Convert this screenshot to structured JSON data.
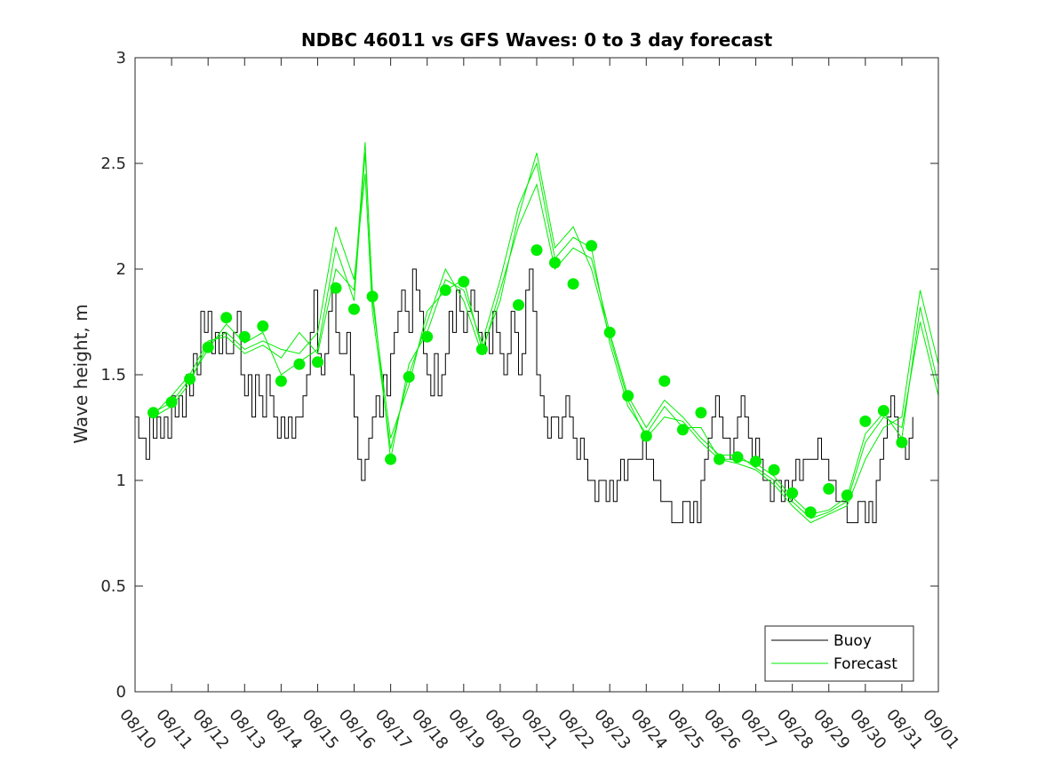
{
  "chart_data": {
    "type": "line",
    "title": "NDBC 46011 vs GFS Waves: 0 to 3 day forecast",
    "xlabel": "",
    "ylabel": "Wave height, m",
    "ylim": [
      0,
      3
    ],
    "yticks": [
      0,
      0.5,
      1,
      1.5,
      2,
      2.5,
      3
    ],
    "ytick_labels": [
      "0",
      "0.5",
      "1",
      "1.5",
      "2",
      "2.5",
      "3"
    ],
    "xlim_days": [
      0,
      22
    ],
    "xtick_labels": [
      "08/10",
      "08/11",
      "08/12",
      "08/13",
      "08/14",
      "08/15",
      "08/16",
      "08/17",
      "08/18",
      "08/19",
      "08/20",
      "08/21",
      "08/22",
      "08/23",
      "08/24",
      "08/25",
      "08/26",
      "08/27",
      "08/28",
      "08/29",
      "08/30",
      "08/31",
      "09/01"
    ],
    "legend": {
      "placement": "bottom-right",
      "entries": [
        "Buoy",
        "Forecast"
      ]
    },
    "colors": {
      "buoy": "#000000",
      "forecast": "#00ee00",
      "marker": "#00ee00",
      "axis": "#262626"
    },
    "series": [
      {
        "name": "Buoy",
        "description_points": "approximate day offsets from 08/10 and wave height (m)",
        "x": [
          0.0,
          0.1,
          0.2,
          0.3,
          0.4,
          0.5,
          0.6,
          0.7,
          0.8,
          0.9,
          1.0,
          1.1,
          1.2,
          1.3,
          1.4,
          1.5,
          1.6,
          1.7,
          1.8,
          1.9,
          2.0,
          2.1,
          2.2,
          2.3,
          2.4,
          2.5,
          2.6,
          2.7,
          2.8,
          2.9,
          3.0,
          3.1,
          3.2,
          3.3,
          3.4,
          3.5,
          3.6,
          3.7,
          3.8,
          3.9,
          4.0,
          4.1,
          4.2,
          4.3,
          4.4,
          4.5,
          4.6,
          4.7,
          4.8,
          4.9,
          5.0,
          5.1,
          5.2,
          5.3,
          5.4,
          5.5,
          5.6,
          5.7,
          5.8,
          5.9,
          6.0,
          6.1,
          6.2,
          6.3,
          6.4,
          6.5,
          6.6,
          6.7,
          6.8,
          6.9,
          7.0,
          7.1,
          7.2,
          7.3,
          7.4,
          7.5,
          7.6,
          7.7,
          7.8,
          7.9,
          8.0,
          8.1,
          8.2,
          8.3,
          8.4,
          8.5,
          8.6,
          8.7,
          8.8,
          8.9,
          9.0,
          9.1,
          9.2,
          9.3,
          9.4,
          9.5,
          9.6,
          9.7,
          9.8,
          9.9,
          10.0,
          10.1,
          10.2,
          10.3,
          10.4,
          10.5,
          10.6,
          10.7,
          10.8,
          10.9,
          11.0,
          11.1,
          11.2,
          11.3,
          11.4,
          11.5,
          11.6,
          11.7,
          11.8,
          11.9,
          12.0,
          12.1,
          12.2,
          12.3,
          12.4,
          12.5,
          12.6,
          12.7,
          12.8,
          12.9,
          13.0,
          13.1,
          13.2,
          13.3,
          13.4,
          13.5,
          13.6,
          13.7,
          13.8,
          13.9,
          14.0,
          14.1,
          14.2,
          14.3,
          14.4,
          14.5,
          14.6,
          14.7,
          14.8,
          14.9,
          15.0,
          15.1,
          15.2,
          15.3,
          15.4,
          15.5,
          15.6,
          15.7,
          15.8,
          15.9,
          16.0,
          16.1,
          16.2,
          16.3,
          16.4,
          16.5,
          16.6,
          16.7,
          16.8,
          16.9,
          17.0,
          17.1,
          17.2,
          17.3,
          17.4,
          17.5,
          17.6,
          17.7,
          17.8,
          17.9,
          18.0,
          18.1,
          18.2,
          18.3,
          18.4,
          18.5,
          18.6,
          18.7,
          18.8,
          18.9,
          19.0,
          19.1,
          19.2,
          19.3,
          19.4,
          19.5,
          19.6,
          19.7,
          19.8,
          19.9,
          20.0,
          20.1,
          20.2,
          20.3,
          20.4,
          20.5,
          20.6,
          20.7,
          20.8,
          20.9,
          21.0,
          21.1,
          21.2,
          21.3
        ],
        "values": [
          1.3,
          1.2,
          1.2,
          1.1,
          1.3,
          1.2,
          1.3,
          1.2,
          1.3,
          1.2,
          1.4,
          1.3,
          1.4,
          1.3,
          1.5,
          1.4,
          1.6,
          1.5,
          1.8,
          1.7,
          1.8,
          1.6,
          1.7,
          1.6,
          1.7,
          1.6,
          1.6,
          1.7,
          1.8,
          1.5,
          1.4,
          1.5,
          1.3,
          1.5,
          1.4,
          1.3,
          1.5,
          1.4,
          1.3,
          1.2,
          1.3,
          1.2,
          1.3,
          1.2,
          1.3,
          1.3,
          1.4,
          1.5,
          1.7,
          1.9,
          1.6,
          1.5,
          1.6,
          1.8,
          1.9,
          1.7,
          1.6,
          1.6,
          1.7,
          1.5,
          1.3,
          1.1,
          1.0,
          1.1,
          1.2,
          1.3,
          1.4,
          1.3,
          1.5,
          1.4,
          1.6,
          1.7,
          1.8,
          1.9,
          1.8,
          1.7,
          2.0,
          1.9,
          1.8,
          1.6,
          1.5,
          1.4,
          1.6,
          1.4,
          1.5,
          1.6,
          1.8,
          1.7,
          1.9,
          1.8,
          1.7,
          1.8,
          1.9,
          1.8,
          1.7,
          1.6,
          1.7,
          1.6,
          1.8,
          1.7,
          1.6,
          1.5,
          1.6,
          1.8,
          1.7,
          1.5,
          1.6,
          1.9,
          2.0,
          1.8,
          1.5,
          1.4,
          1.3,
          1.2,
          1.3,
          1.3,
          1.2,
          1.3,
          1.4,
          1.3,
          1.2,
          1.1,
          1.2,
          1.1,
          1.0,
          1.0,
          0.9,
          1.0,
          1.0,
          0.9,
          1.0,
          0.9,
          1.0,
          1.1,
          1.0,
          1.1,
          1.1,
          1.1,
          1.1,
          1.2,
          1.1,
          1.1,
          1.0,
          1.0,
          0.9,
          0.9,
          0.9,
          0.8,
          0.8,
          0.8,
          0.9,
          0.9,
          0.8,
          0.9,
          0.8,
          1.0,
          1.1,
          1.2,
          1.3,
          1.4,
          1.3,
          1.2,
          1.2,
          1.1,
          1.2,
          1.3,
          1.4,
          1.3,
          1.2,
          1.1,
          1.2,
          1.1,
          1.0,
          1.0,
          0.9,
          1.0,
          1.0,
          0.9,
          1.0,
          0.9,
          1.0,
          1.1,
          1.0,
          1.1,
          1.1,
          1.1,
          1.1,
          1.2,
          1.1,
          1.1,
          1.0,
          1.0,
          0.9,
          0.9,
          0.9,
          0.8,
          0.8,
          0.8,
          0.9,
          0.9,
          0.8,
          0.9,
          0.8,
          1.0,
          1.1,
          1.2,
          1.3,
          1.4,
          1.3,
          1.2,
          1.2,
          1.1,
          1.2,
          1.3
        ]
      },
      {
        "name": "Forecast",
        "runs": [
          {
            "x": [
              0.5,
              1.0,
              1.5,
              2.0,
              2.5,
              3.0,
              3.5,
              4.0,
              4.5,
              5.0,
              5.5,
              6.0,
              6.3,
              6.5,
              7.0,
              7.5,
              8.0,
              8.5,
              9.0,
              9.5,
              10.0,
              10.5,
              11.0,
              11.5,
              12.0,
              12.5,
              13.0,
              13.5,
              14.0,
              14.5,
              15.0,
              15.5,
              16.0,
              16.5,
              17.0,
              17.5,
              18.0,
              18.5,
              19.0,
              19.5,
              20.0,
              20.5,
              21.0,
              21.5,
              22.0
            ],
            "values": [
              1.32,
              1.37,
              1.48,
              1.62,
              1.74,
              1.65,
              1.7,
              1.5,
              1.56,
              1.62,
              2.1,
              1.85,
              2.55,
              1.9,
              1.1,
              1.55,
              1.7,
              1.95,
              1.9,
              1.65,
              1.95,
              2.3,
              2.5,
              2.05,
              2.15,
              2.1,
              1.65,
              1.35,
              1.22,
              1.35,
              1.25,
              1.25,
              1.1,
              1.1,
              1.08,
              1.02,
              0.92,
              0.84,
              0.86,
              0.92,
              1.22,
              1.32,
              1.2,
              1.82,
              1.45
            ]
          },
          {
            "x": [
              0.5,
              1.0,
              1.5,
              2.0,
              2.5,
              3.0,
              3.5,
              4.0,
              4.5,
              5.0,
              5.5,
              6.0,
              6.3,
              6.5,
              7.0,
              7.5,
              8.0,
              8.5,
              9.0,
              9.5,
              10.0,
              10.5,
              11.0,
              11.5,
              12.0,
              12.5,
              13.0,
              13.5,
              14.0,
              14.5,
              15.0,
              15.5,
              16.0,
              16.5,
              17.0,
              17.5,
              18.0,
              18.5,
              19.0,
              19.5,
              20.0,
              20.5,
              21.0,
              21.5,
              22.0
            ],
            "values": [
              1.3,
              1.35,
              1.46,
              1.65,
              1.7,
              1.62,
              1.66,
              1.62,
              1.6,
              1.7,
              2.2,
              1.95,
              2.45,
              1.8,
              1.15,
              1.5,
              1.75,
              2.0,
              1.85,
              1.6,
              1.9,
              2.2,
              2.4,
              2.0,
              2.1,
              2.05,
              1.7,
              1.4,
              1.25,
              1.38,
              1.3,
              1.2,
              1.12,
              1.12,
              1.06,
              1.0,
              0.9,
              0.82,
              0.85,
              0.9,
              1.18,
              1.3,
              1.25,
              1.75,
              1.4
            ]
          },
          {
            "x": [
              0.5,
              1.0,
              1.5,
              2.0,
              2.5,
              3.0,
              3.5,
              4.0,
              4.5,
              5.0,
              5.5,
              6.0,
              6.3,
              6.5,
              7.0,
              7.5,
              8.0,
              8.5,
              9.0,
              9.5,
              10.0,
              10.5,
              11.0,
              11.5,
              12.0,
              12.5,
              13.0,
              13.5,
              14.0,
              14.5,
              15.0,
              15.5,
              16.0,
              16.5,
              17.0,
              17.5,
              18.0,
              18.5,
              19.0,
              19.5,
              20.0,
              20.5,
              21.0,
              21.5,
              22.0
            ],
            "values": [
              1.31,
              1.4,
              1.5,
              1.66,
              1.68,
              1.6,
              1.64,
              1.58,
              1.7,
              1.6,
              2.0,
              1.9,
              2.6,
              1.85,
              1.2,
              1.45,
              1.8,
              1.9,
              1.95,
              1.62,
              1.85,
              2.25,
              2.55,
              2.1,
              2.2,
              2.0,
              1.68,
              1.38,
              1.2,
              1.3,
              1.28,
              1.18,
              1.1,
              1.08,
              1.05,
              0.98,
              0.88,
              0.8,
              0.84,
              0.88,
              1.1,
              1.25,
              1.3,
              1.9,
              1.55
            ]
          }
        ]
      }
    ],
    "markers": {
      "name": "Forecast 0h",
      "x": [
        0.5,
        1.0,
        1.5,
        2.0,
        2.5,
        3.0,
        3.5,
        4.0,
        4.5,
        5.0,
        5.5,
        6.0,
        6.5,
        7.0,
        7.5,
        8.0,
        8.5,
        9.0,
        9.5,
        10.5,
        11.0,
        11.5,
        12.0,
        12.5,
        13.0,
        13.5,
        14.0,
        14.5,
        15.0,
        15.5,
        16.0,
        16.5,
        17.0,
        17.5,
        18.0,
        18.5,
        19.0,
        19.5,
        20.0,
        20.5,
        21.0
      ],
      "values": [
        1.32,
        1.37,
        1.48,
        1.63,
        1.77,
        1.68,
        1.73,
        1.47,
        1.55,
        1.56,
        1.91,
        1.81,
        1.87,
        1.1,
        1.49,
        1.68,
        1.9,
        1.94,
        1.62,
        1.83,
        2.09,
        2.03,
        1.93,
        2.11,
        1.7,
        1.4,
        1.21,
        1.47,
        1.24,
        1.32,
        1.1,
        1.11,
        1.09,
        1.05,
        0.94,
        0.85,
        0.96,
        0.93,
        1.28,
        1.33,
        1.18
      ]
    }
  }
}
